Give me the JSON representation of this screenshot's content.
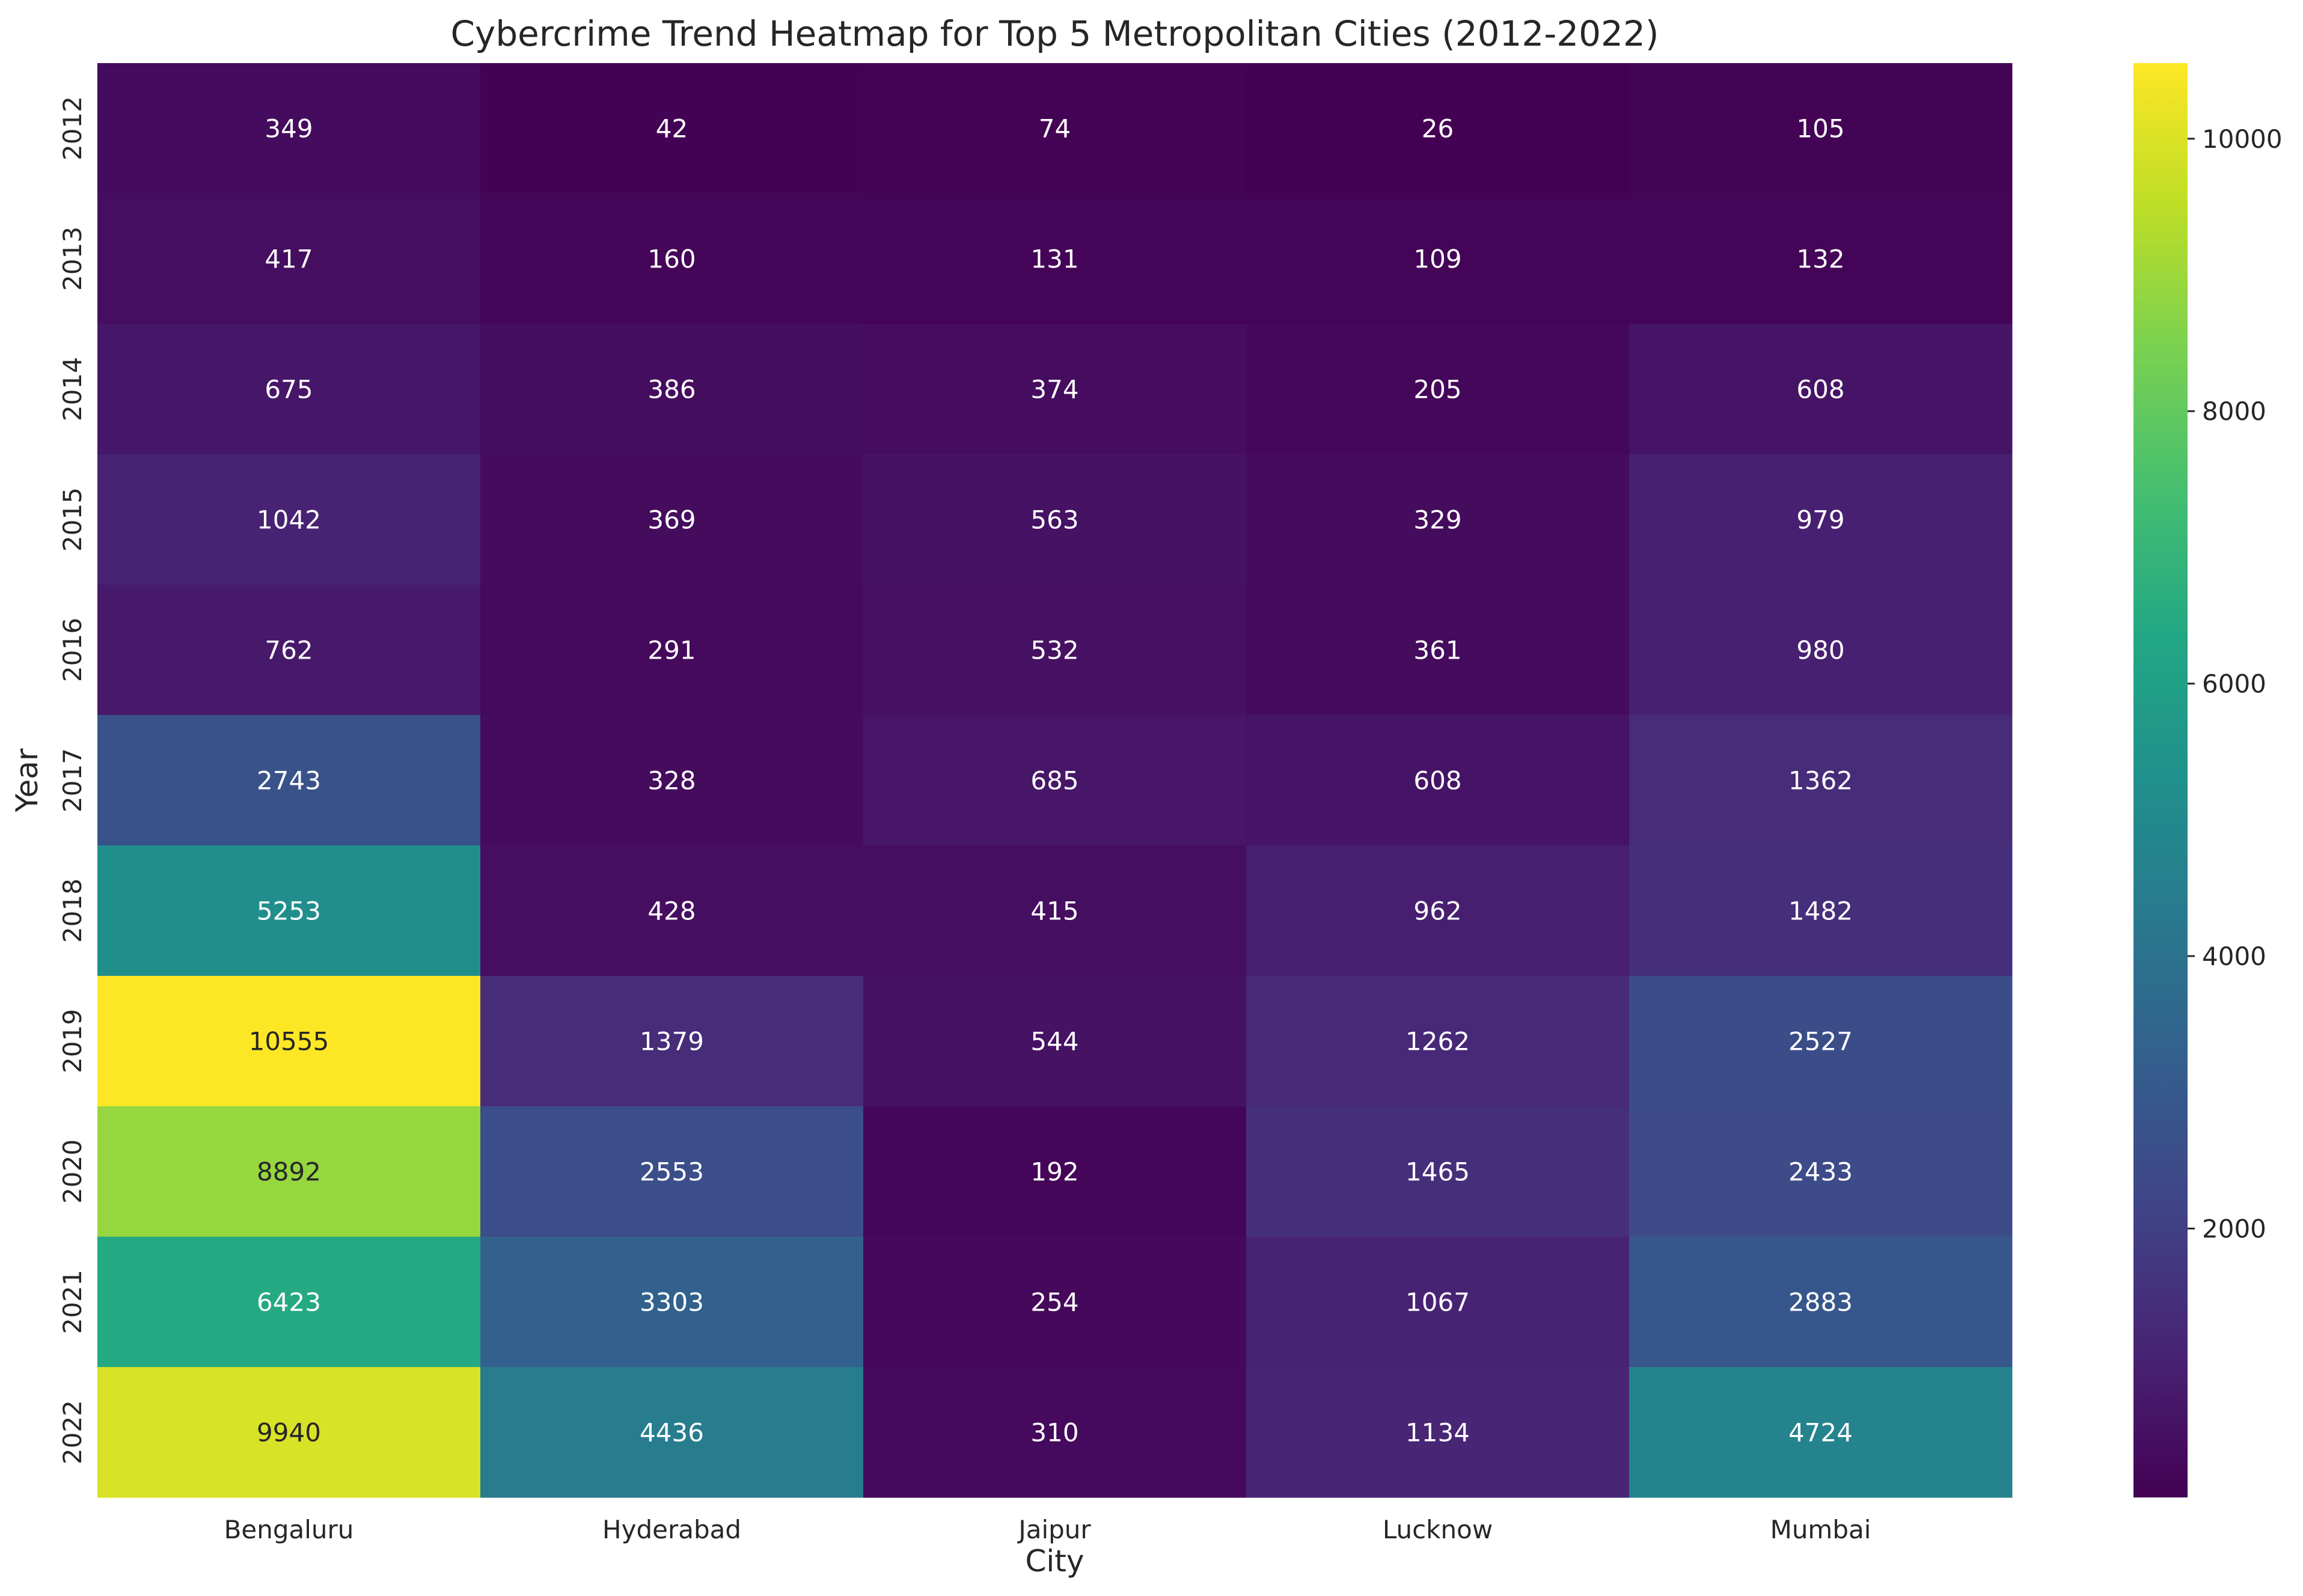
{
  "chart_data": {
    "type": "heatmap",
    "title": "Cybercrime Trend Heatmap for Top 5 Metropolitan Cities (2012-2022)",
    "xlabel": "City",
    "ylabel": "Year",
    "x": [
      "Bengaluru",
      "Hyderabad",
      "Jaipur",
      "Lucknow",
      "Mumbai"
    ],
    "y": [
      "2012",
      "2013",
      "2014",
      "2015",
      "2016",
      "2017",
      "2018",
      "2019",
      "2020",
      "2021",
      "2022"
    ],
    "values": [
      [
        349,
        42,
        74,
        26,
        105
      ],
      [
        417,
        160,
        131,
        109,
        132
      ],
      [
        675,
        386,
        374,
        205,
        608
      ],
      [
        1042,
        369,
        563,
        329,
        979
      ],
      [
        762,
        291,
        532,
        361,
        980
      ],
      [
        2743,
        328,
        685,
        608,
        1362
      ],
      [
        5253,
        428,
        415,
        962,
        1482
      ],
      [
        10555,
        1379,
        544,
        1262,
        2527
      ],
      [
        8892,
        2553,
        192,
        1465,
        2433
      ],
      [
        6423,
        3303,
        254,
        1067,
        2883
      ],
      [
        9940,
        4436,
        310,
        1134,
        4724
      ]
    ],
    "colormap": "viridis",
    "colorbar": {
      "min": 26,
      "max": 10555,
      "ticks": [
        2000,
        4000,
        6000,
        8000,
        10000
      ]
    },
    "annotated": true,
    "grid": false
  }
}
